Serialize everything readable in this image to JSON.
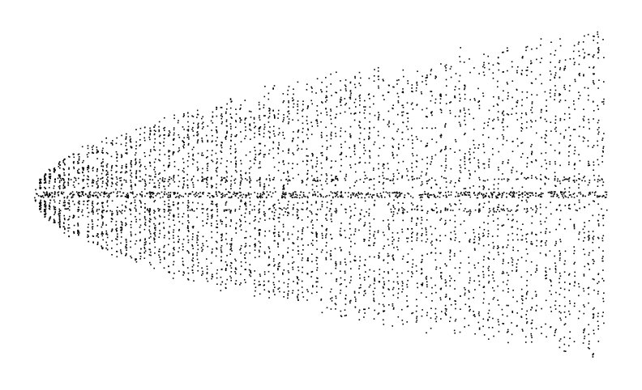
{
  "chart_data": {
    "type": "scatter",
    "title": "",
    "xlabel": "",
    "ylabel": "",
    "axes_visible": false,
    "grid": false,
    "legend": "none",
    "point_color": "#000000",
    "background_color": "#ffffff",
    "xlim": [
      0,
      1
    ],
    "ylim": [
      -1,
      1
    ],
    "description_of_shape": "dense point cloud opening from a vertex at the left toward the right, symmetric about a central horizontal band",
    "envelope": {
      "vertex_x": 0.0,
      "max_x": 1.0,
      "upper_bound_at_max_x": 1.0,
      "lower_bound_at_max_x": -1.0,
      "growth": "sqrt"
    },
    "central_band": {
      "y": 0.0,
      "density": "high"
    },
    "approx_point_count": 5000
  }
}
